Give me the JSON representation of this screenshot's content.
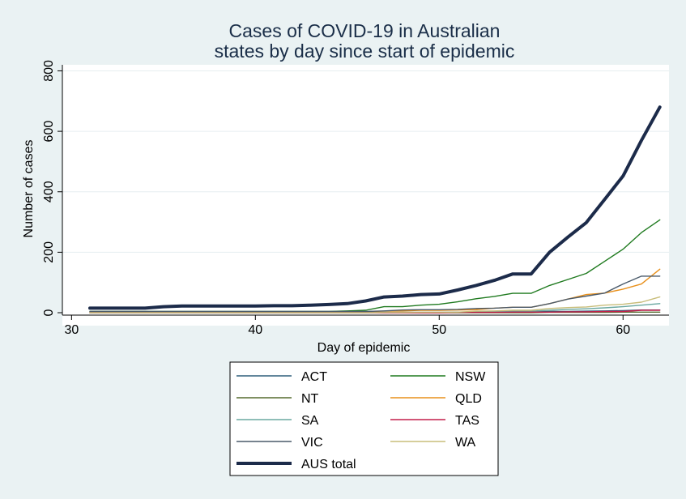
{
  "chart_data": {
    "type": "line",
    "title_lines": [
      "Cases of COVID-19 in Australian",
      "states by day since start of epidemic"
    ],
    "xlabel": "Day of epidemic",
    "ylabel": "Number of cases",
    "xlim": [
      29.5,
      62.5
    ],
    "ylim": [
      -8,
      820
    ],
    "xticks": [
      "30",
      "40",
      "50",
      "60"
    ],
    "yticks": [
      "0",
      "200",
      "400",
      "600",
      "800"
    ],
    "grid": true,
    "legend_position": "bottom",
    "x": [
      31,
      32,
      33,
      34,
      35,
      36,
      37,
      38,
      39,
      40,
      41,
      42,
      43,
      44,
      45,
      46,
      47,
      48,
      49,
      50,
      51,
      52,
      53,
      54,
      55,
      56,
      57,
      58,
      59,
      60,
      61,
      62
    ],
    "series": [
      {
        "name": "ACT",
        "color": "#2e5e7b",
        "width": 1.4,
        "values": [
          0,
          0,
          0,
          0,
          0,
          0,
          0,
          0,
          0,
          0,
          0,
          0,
          0,
          0,
          0,
          0,
          1,
          1,
          1,
          1,
          2,
          2,
          3,
          3,
          3,
          4,
          4,
          5,
          6,
          7,
          9,
          9
        ]
      },
      {
        "name": "NSW",
        "color": "#1f7a1f",
        "width": 1.4,
        "values": [
          4,
          4,
          4,
          4,
          4,
          4,
          4,
          4,
          4,
          4,
          4,
          4,
          4,
          4,
          6,
          8,
          20,
          20,
          25,
          28,
          36,
          46,
          54,
          64,
          64,
          90,
          110,
          130,
          170,
          210,
          265,
          307
        ]
      },
      {
        "name": "NT",
        "color": "#556b2f",
        "width": 1.4,
        "values": [
          0,
          0,
          0,
          0,
          0,
          0,
          0,
          0,
          0,
          0,
          0,
          0,
          0,
          0,
          0,
          0,
          0,
          0,
          0,
          0,
          0,
          0,
          0,
          0,
          0,
          1,
          1,
          1,
          1,
          2,
          2,
          2
        ]
      },
      {
        "name": "QLD",
        "color": "#e8901c",
        "width": 1.4,
        "values": [
          1,
          1,
          1,
          1,
          1,
          1,
          1,
          1,
          1,
          1,
          1,
          1,
          2,
          2,
          3,
          3,
          5,
          6,
          8,
          8,
          9,
          10,
          15,
          18,
          18,
          30,
          45,
          60,
          65,
          78,
          95,
          144
        ]
      },
      {
        "name": "SA",
        "color": "#6aa8a0",
        "width": 1.4,
        "values": [
          0,
          0,
          0,
          0,
          0,
          0,
          0,
          0,
          0,
          0,
          0,
          0,
          0,
          0,
          0,
          0,
          1,
          1,
          1,
          1,
          2,
          2,
          3,
          5,
          5,
          8,
          11,
          13,
          16,
          20,
          25,
          30
        ]
      },
      {
        "name": "TAS",
        "color": "#c41e4a",
        "width": 1.4,
        "values": [
          0,
          0,
          0,
          0,
          0,
          0,
          0,
          0,
          0,
          0,
          0,
          0,
          0,
          0,
          0,
          0,
          0,
          0,
          0,
          0,
          1,
          1,
          1,
          2,
          2,
          2,
          3,
          3,
          4,
          4,
          8,
          8
        ]
      },
      {
        "name": "VIC",
        "color": "#4a5a6a",
        "width": 1.4,
        "values": [
          4,
          4,
          4,
          4,
          4,
          4,
          4,
          4,
          4,
          4,
          4,
          4,
          4,
          4,
          4,
          4,
          6,
          9,
          10,
          10,
          11,
          14,
          15,
          18,
          18,
          30,
          45,
          55,
          65,
          95,
          121,
          121
        ]
      },
      {
        "name": "WA",
        "color": "#c8bd7a",
        "width": 1.4,
        "values": [
          0,
          0,
          0,
          0,
          0,
          0,
          0,
          0,
          0,
          0,
          0,
          0,
          0,
          0,
          0,
          0,
          1,
          1,
          2,
          2,
          2,
          5,
          6,
          8,
          8,
          14,
          17,
          19,
          25,
          28,
          35,
          52
        ]
      },
      {
        "name": "AUS total",
        "color": "#1c2b4a",
        "width": 4,
        "values": [
          15,
          15,
          15,
          15,
          20,
          22,
          22,
          22,
          22,
          22,
          23,
          23,
          25,
          27,
          30,
          39,
          52,
          55,
          60,
          62,
          75,
          90,
          107,
          128,
          128,
          200,
          250,
          298,
          375,
          452,
          570,
          680
        ]
      }
    ]
  }
}
